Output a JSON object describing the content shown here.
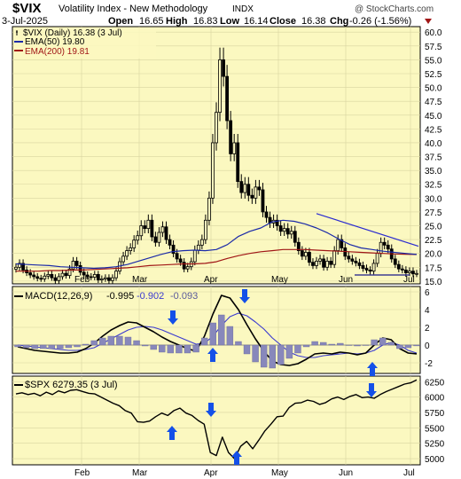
{
  "header": {
    "symbol": "$VIX",
    "name": "Volatility Index - New Methodology",
    "exchange": "INDX",
    "watermark": "@ StockCharts.com",
    "date": "3-Jul-2025",
    "open_label": "Open",
    "open": "16.65",
    "high_label": "High",
    "high": "16.83",
    "low_label": "Low",
    "low": "16.14",
    "close_label": "Close",
    "close": "16.38",
    "chg_label": "Chg",
    "chg": "-0.26 (-1.56%)"
  },
  "legend": {
    "vix": "$VIX (Daily) 16.38 (3 Jul)",
    "ema50": "EMA(50) 19.80",
    "ema200": "EMA(200) 19.81",
    "macd_name": "MACD(12,26,9)",
    "macd_v1": "-0.995",
    "macd_v2": "-0.902",
    "macd_v3": "-0.093",
    "spx": "$SPX 6279.35 (3 Jul)"
  },
  "colors": {
    "panel_bg": "#fbf8c0",
    "grid": "#d8d4a0",
    "ema50": "#1b2aa8",
    "ema200": "#a01616",
    "macd_hist": "#8888bb",
    "signal": "#3a3ad0",
    "arrow": "#1450e8",
    "trend": "#2a2ad0"
  },
  "chart_data": [
    {
      "type": "candlestick",
      "title": "$VIX (Daily)",
      "ylim": [
        14.5,
        61
      ],
      "y_ticks": [
        15.0,
        17.5,
        20.0,
        22.5,
        25.0,
        27.5,
        30.0,
        32.5,
        35.0,
        37.5,
        40.0,
        42.5,
        45.0,
        47.5,
        50.0,
        52.5,
        55.0,
        57.5,
        60.0
      ],
      "y_tick_labels": [
        "15.0",
        "17.5",
        "20.0",
        "22.5",
        "25.0",
        "27.5",
        "30.0",
        "32.5",
        "35.0",
        "37.5",
        "40.0",
        "42.5",
        "45.0",
        "47.5",
        "50.0",
        "52.5",
        "55.0",
        "57.5",
        "60.0"
      ],
      "x_labels": [
        "Feb",
        "Mar",
        "Apr",
        "May",
        "Jun",
        "Jul"
      ],
      "closes": [
        17.5,
        18.2,
        17.0,
        16.5,
        16.1,
        15.8,
        15.5,
        15.4,
        15.9,
        16.2,
        15.6,
        15.1,
        15.8,
        16.4,
        16.0,
        17.2,
        18.6,
        17.8,
        16.6,
        16.1,
        15.8,
        15.7,
        16.2,
        15.2,
        15.4,
        15.6,
        15.1,
        15.6,
        16.8,
        18.5,
        19.5,
        20.5,
        21.0,
        22.4,
        23.2,
        25.0,
        24.5,
        26.0,
        23.0,
        22.0,
        23.8,
        24.8,
        22.5,
        21.5,
        20.0,
        19.0,
        18.4,
        17.2,
        17.6,
        18.5,
        20.6,
        21.5,
        22.5,
        26.0,
        30.0,
        40.0,
        45.5,
        55.0,
        52.0,
        44.0,
        38.0,
        40.0,
        33.0,
        31.0,
        32.5,
        30.5,
        30.0,
        32.0,
        31.5,
        27.5,
        26.5,
        25.5,
        26.0,
        25.0,
        24.0,
        24.5,
        23.5,
        24.0,
        22.0,
        20.5,
        19.5,
        20.2,
        18.4,
        17.8,
        18.6,
        19.0,
        17.5,
        18.6,
        18.0,
        20.5,
        22.5,
        21.0,
        19.5,
        19.0,
        18.6,
        18.3,
        17.8,
        17.3,
        17.0,
        16.8,
        18.2,
        20.0,
        22.0,
        21.5,
        20.8,
        19.0,
        18.0,
        17.2,
        17.0,
        16.5,
        16.8,
        16.3,
        16.38
      ],
      "series": [
        {
          "name": "EMA(50) 19.80",
          "values": [
            18.1,
            18.0,
            17.9,
            17.8,
            17.6,
            17.5,
            17.4,
            17.3,
            17.4,
            17.6,
            18.0,
            18.6,
            19.2,
            19.8,
            20.3,
            20.5,
            20.6,
            20.5,
            20.7,
            21.6,
            23.1,
            24.0,
            24.6,
            25.7,
            26.0,
            25.8,
            25.3,
            24.6,
            23.7,
            22.6,
            21.6,
            21.0,
            20.7,
            20.4,
            20.2,
            20.0,
            19.8
          ]
        },
        {
          "name": "EMA(200) 19.81",
          "values": [
            16.8,
            16.8,
            16.8,
            16.9,
            16.9,
            17.0,
            17.0,
            17.1,
            17.2,
            17.3,
            17.4,
            17.6,
            17.8,
            17.9,
            18.0,
            18.1,
            18.1,
            18.2,
            18.5,
            19.1,
            19.6,
            20.0,
            20.3,
            20.5,
            20.7,
            20.7,
            20.7,
            20.6,
            20.5,
            20.4,
            20.3,
            20.2,
            20.1,
            20.0,
            19.9,
            19.85,
            19.81
          ]
        }
      ]
    },
    {
      "type": "bar",
      "title": "MACD(12,26,9)",
      "ylim": [
        -3.2,
        6.6
      ],
      "y_ticks": [
        6,
        4,
        2,
        0,
        -2
      ],
      "y_tick_labels": [
        "6",
        "4",
        "2",
        "0",
        "-2"
      ],
      "series": [
        {
          "name": "MACD(12,26,9) -0.995",
          "values": [
            -0.2,
            -0.4,
            -0.6,
            -0.7,
            -0.8,
            -0.9,
            -0.9,
            -0.8,
            -0.4,
            0.2,
            1.0,
            1.7,
            2.2,
            2.6,
            2.5,
            2.0,
            1.5,
            0.9,
            0.4,
            0.0,
            -0.4,
            -0.7,
            1.0,
            3.5,
            5.6,
            5.3,
            4.0,
            2.3,
            0.7,
            -0.7,
            -1.8,
            -2.2,
            -2.3,
            -2.1,
            -1.6,
            -1.0,
            -0.9,
            -1.0,
            -0.8,
            -0.9,
            -1.1,
            -0.9,
            0.0,
            0.8,
            0.6,
            -0.4,
            -0.9,
            -0.995
          ]
        },
        {
          "name": "-0.902",
          "values": [
            0.0,
            -0.1,
            -0.2,
            -0.3,
            -0.4,
            -0.5,
            -0.6,
            -0.6,
            -0.5,
            -0.3,
            0.2,
            0.7,
            1.2,
            1.7,
            2.0,
            2.1,
            2.0,
            1.7,
            1.3,
            0.9,
            0.5,
            0.1,
            0.2,
            1.0,
            2.2,
            3.2,
            3.6,
            3.3,
            2.6,
            1.8,
            0.8,
            0.0,
            -0.8,
            -1.2,
            -1.4,
            -1.4,
            -1.2,
            -1.1,
            -1.0,
            -0.9,
            -1.0,
            -0.9,
            -0.6,
            0.0,
            0.3,
            0.0,
            -0.6,
            -0.902
          ]
        },
        {
          "name": "-0.093",
          "values": [
            -0.2,
            -0.3,
            -0.4,
            -0.4,
            -0.4,
            -0.4,
            -0.3,
            -0.2,
            0.1,
            0.5,
            0.8,
            1.0,
            1.0,
            0.9,
            0.5,
            -0.1,
            -0.5,
            -0.8,
            -0.9,
            -0.9,
            -0.9,
            -0.8,
            0.8,
            2.5,
            3.4,
            2.1,
            0.4,
            -1.0,
            -1.9,
            -2.5,
            -2.6,
            -2.2,
            -1.5,
            -0.9,
            -0.2,
            0.4,
            0.3,
            0.1,
            0.2,
            0.0,
            -0.1,
            0.0,
            0.6,
            0.8,
            0.3,
            -0.4,
            -0.3,
            -0.093
          ]
        }
      ]
    },
    {
      "type": "line",
      "title": "$SPX 6279.35 (3 Jul)",
      "ylim": [
        4900,
        6340
      ],
      "y_ticks": [
        6250,
        6000,
        5750,
        5500,
        5250,
        5000
      ],
      "y_tick_labels": [
        "6250",
        "6000",
        "5750",
        "5500",
        "5250",
        "5000"
      ],
      "x_labels": [
        "Feb",
        "Mar",
        "Apr",
        "May",
        "Jun",
        "Jul"
      ],
      "series": [
        {
          "name": "$SPX",
          "values": [
            6050,
            6070,
            6040,
            6060,
            6020,
            6080,
            6040,
            6100,
            6070,
            6110,
            6120,
            6090,
            6060,
            6050,
            6000,
            5950,
            5900,
            5860,
            5780,
            5740,
            5600,
            5590,
            5610,
            5680,
            5740,
            5700,
            5780,
            5820,
            5740,
            5700,
            5620,
            5560,
            5100,
            5050,
            5350,
            5100,
            5000,
            5200,
            5280,
            5160,
            5300,
            5450,
            5560,
            5680,
            5690,
            5830,
            5900,
            5910,
            5950,
            5930,
            5880,
            5910,
            5970,
            6000,
            5960,
            6010,
            6040,
            5990,
            6000,
            5980,
            6040,
            6090,
            6130,
            6170,
            6210,
            6230,
            6279.35
          ]
        }
      ]
    }
  ]
}
